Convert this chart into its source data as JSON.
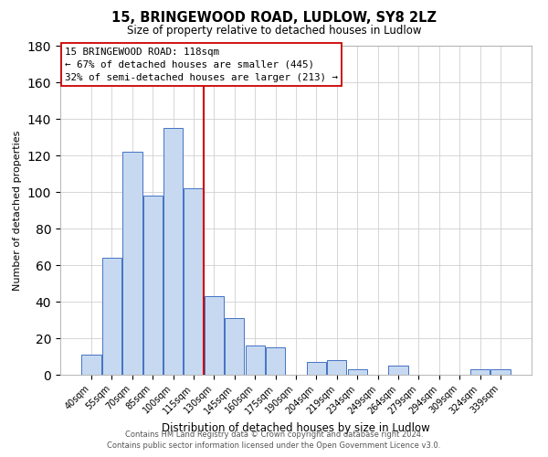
{
  "title": "15, BRINGEWOOD ROAD, LUDLOW, SY8 2LZ",
  "subtitle": "Size of property relative to detached houses in Ludlow",
  "xlabel": "Distribution of detached houses by size in Ludlow",
  "ylabel": "Number of detached properties",
  "categories": [
    "40sqm",
    "55sqm",
    "70sqm",
    "85sqm",
    "100sqm",
    "115sqm",
    "130sqm",
    "145sqm",
    "160sqm",
    "175sqm",
    "190sqm",
    "204sqm",
    "219sqm",
    "234sqm",
    "249sqm",
    "264sqm",
    "279sqm",
    "294sqm",
    "309sqm",
    "324sqm",
    "339sqm"
  ],
  "values": [
    11,
    64,
    122,
    98,
    135,
    102,
    43,
    31,
    16,
    15,
    0,
    7,
    8,
    3,
    0,
    5,
    0,
    0,
    0,
    3,
    3
  ],
  "bar_color": "#c6d9f0",
  "bar_edge_color": "#4472c4",
  "vline_color": "#cc0000",
  "vline_index": 5,
  "annotation_line1": "15 BRINGEWOOD ROAD: 118sqm",
  "annotation_line2": "← 67% of detached houses are smaller (445)",
  "annotation_line3": "32% of semi-detached houses are larger (213) →",
  "ylim": [
    0,
    180
  ],
  "yticks": [
    0,
    20,
    40,
    60,
    80,
    100,
    120,
    140,
    160,
    180
  ],
  "footer_line1": "Contains HM Land Registry data © Crown copyright and database right 2024.",
  "footer_line2": "Contains public sector information licensed under the Open Government Licence v3.0.",
  "background_color": "#ffffff",
  "grid_color": "#d0d0d0"
}
